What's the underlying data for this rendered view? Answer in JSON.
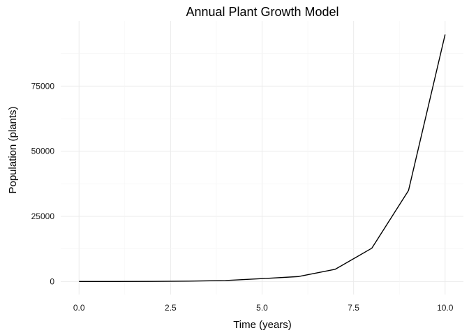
{
  "chart_data": {
    "type": "line",
    "title": "Annual Plant Growth Model",
    "xlabel": "Time (years)",
    "ylabel": "Population (plants)",
    "xlim": [
      -0.5,
      10.5
    ],
    "ylim": [
      -5000,
      100000
    ],
    "xticks": [
      0,
      2.5,
      5,
      7.5,
      10
    ],
    "xtick_labels": [
      "0.0",
      "2.5",
      "5.0",
      "7.5",
      "10.0"
    ],
    "yticks": [
      0,
      25000,
      50000,
      75000
    ],
    "ytick_labels": [
      "0",
      "25000",
      "50000",
      "75000"
    ],
    "grid": true,
    "legend": "none",
    "series": [
      {
        "color": "#000000",
        "x": [
          0,
          1,
          2,
          3,
          4,
          5,
          6,
          7,
          8,
          9,
          10
        ],
        "y": [
          5,
          15,
          45,
          130,
          375,
          1100,
          1900,
          4700,
          12800,
          34900,
          94800
        ]
      }
    ]
  }
}
